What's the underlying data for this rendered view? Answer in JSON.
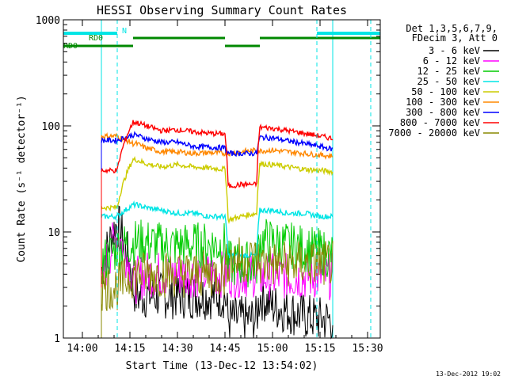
{
  "chart_data": {
    "type": "line",
    "title": "HESSI Observing Summary Count Rates",
    "xlabel": "Start Time (13-Dec-12 13:54:02)",
    "ylabel": "Count Rate (s⁻¹ detector⁻¹)",
    "ylog": true,
    "xlim": [
      "13:54",
      "15:34"
    ],
    "ylim": [
      1,
      1000
    ],
    "x_ticks": [
      "14:00",
      "14:15",
      "14:30",
      "14:45",
      "15:00",
      "15:15",
      "15:30"
    ],
    "y_ticks": [
      "1",
      "10",
      "100",
      "1000"
    ],
    "legend_header": [
      "Det 1,3,5,6,7,9,",
      "FDecim 3, Att 0"
    ],
    "legend_position": "right",
    "footer_date": "13-Dec-2012 19:02",
    "flags": {
      "labels": [
        "N",
        "RD0",
        "RD0"
      ],
      "night_bars": [
        [
          "13:54",
          "14:11"
        ],
        [
          "15:14",
          "15:34"
        ]
      ],
      "saa_bars": [
        [
          "13:54",
          "14:16"
        ],
        [
          "14:16",
          "14:45"
        ],
        [
          "14:45",
          "14:56"
        ],
        [
          "14:56",
          "15:34"
        ]
      ],
      "vlines": [
        "14:11",
        "15:14",
        "15:31"
      ]
    },
    "gaps": [
      [
        "13:54",
        "14:06"
      ],
      [
        "15:19",
        "15:34"
      ]
    ],
    "x": [
      "14:06",
      "14:11",
      "14:16",
      "14:17",
      "14:20",
      "14:25",
      "14:30",
      "14:35",
      "14:40",
      "14:45",
      "14:46",
      "14:50",
      "14:55",
      "14:56",
      "15:00",
      "15:05",
      "15:10",
      "15:15",
      "15:19"
    ],
    "series": [
      {
        "name": "3 - 6 keV",
        "color": "#000000",
        "values": [
          4,
          12,
          3,
          2.5,
          2.5,
          2.5,
          2.5,
          2.5,
          2.5,
          2.5,
          1.5,
          1.5,
          1.5,
          2.5,
          2,
          1.8,
          1.6,
          1.5,
          1.5
        ]
      },
      {
        "name": "6 - 12 keV",
        "color": "#ff00ff",
        "values": [
          2.8,
          9.5,
          3.5,
          3.5,
          4,
          4,
          4,
          4,
          4,
          4,
          4,
          4,
          4,
          3.8,
          3.8,
          3.8,
          3.8,
          3.8,
          3.8
        ]
      },
      {
        "name": "12 - 25 keV",
        "color": "#00cc00",
        "values": [
          5,
          7,
          8,
          8,
          8,
          7.5,
          7.5,
          7.5,
          7.5,
          7.5,
          5,
          5,
          5,
          8.5,
          8,
          7.5,
          7,
          6.5,
          6
        ]
      },
      {
        "name": "25 - 50 keV",
        "color": "#00e5e5",
        "values": [
          14,
          14,
          18,
          18,
          17,
          16,
          15,
          15,
          14,
          14,
          6,
          6,
          6,
          16,
          16,
          15,
          15,
          14,
          14
        ]
      },
      {
        "name": "50 - 100 keV",
        "color": "#cccc00",
        "values": [
          17,
          17,
          48,
          48,
          44,
          41,
          43,
          41,
          40,
          39,
          13,
          14,
          15,
          44,
          43,
          41,
          39,
          38,
          37
        ]
      },
      {
        "name": "100 - 300 keV",
        "color": "#ff8800",
        "values": [
          80,
          80,
          68,
          68,
          62,
          57,
          57,
          55,
          56,
          55,
          55,
          57,
          59,
          58,
          59,
          57,
          55,
          53,
          52
        ]
      },
      {
        "name": "300 - 800 keV",
        "color": "#0000ff",
        "values": [
          73,
          73,
          82,
          82,
          76,
          70,
          70,
          64,
          63,
          62,
          55,
          55,
          55,
          78,
          77,
          72,
          68,
          64,
          60
        ]
      },
      {
        "name": "800 - 7000 keV",
        "color": "#ff0000",
        "values": [
          38,
          38,
          108,
          108,
          100,
          90,
          92,
          88,
          85,
          84,
          27,
          28,
          28,
          97,
          95,
          90,
          85,
          80,
          76
        ]
      },
      {
        "name": "7000 - 20000 keV",
        "color": "#888800",
        "values": [
          3,
          3,
          4,
          4,
          4,
          4,
          4,
          4,
          4,
          4,
          5.5,
          5.5,
          5.5,
          5,
          5,
          5,
          5,
          5,
          5
        ]
      }
    ]
  }
}
